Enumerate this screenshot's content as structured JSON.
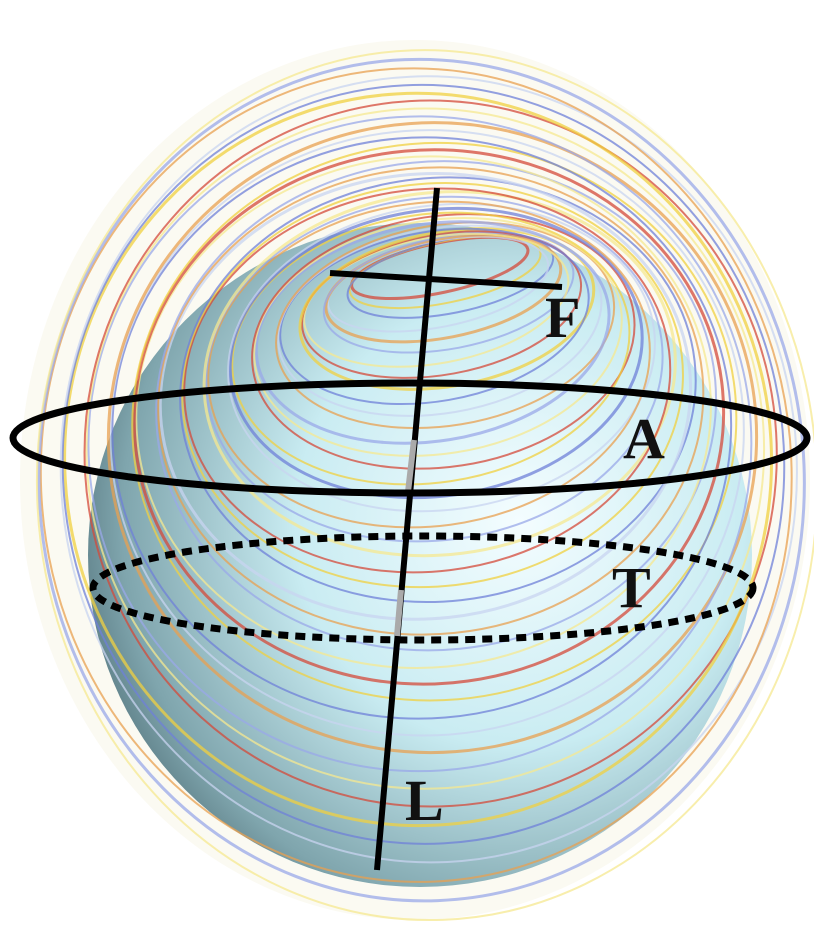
{
  "labels": {
    "F": "F",
    "A": "A",
    "T": "T",
    "L": "L"
  }
}
